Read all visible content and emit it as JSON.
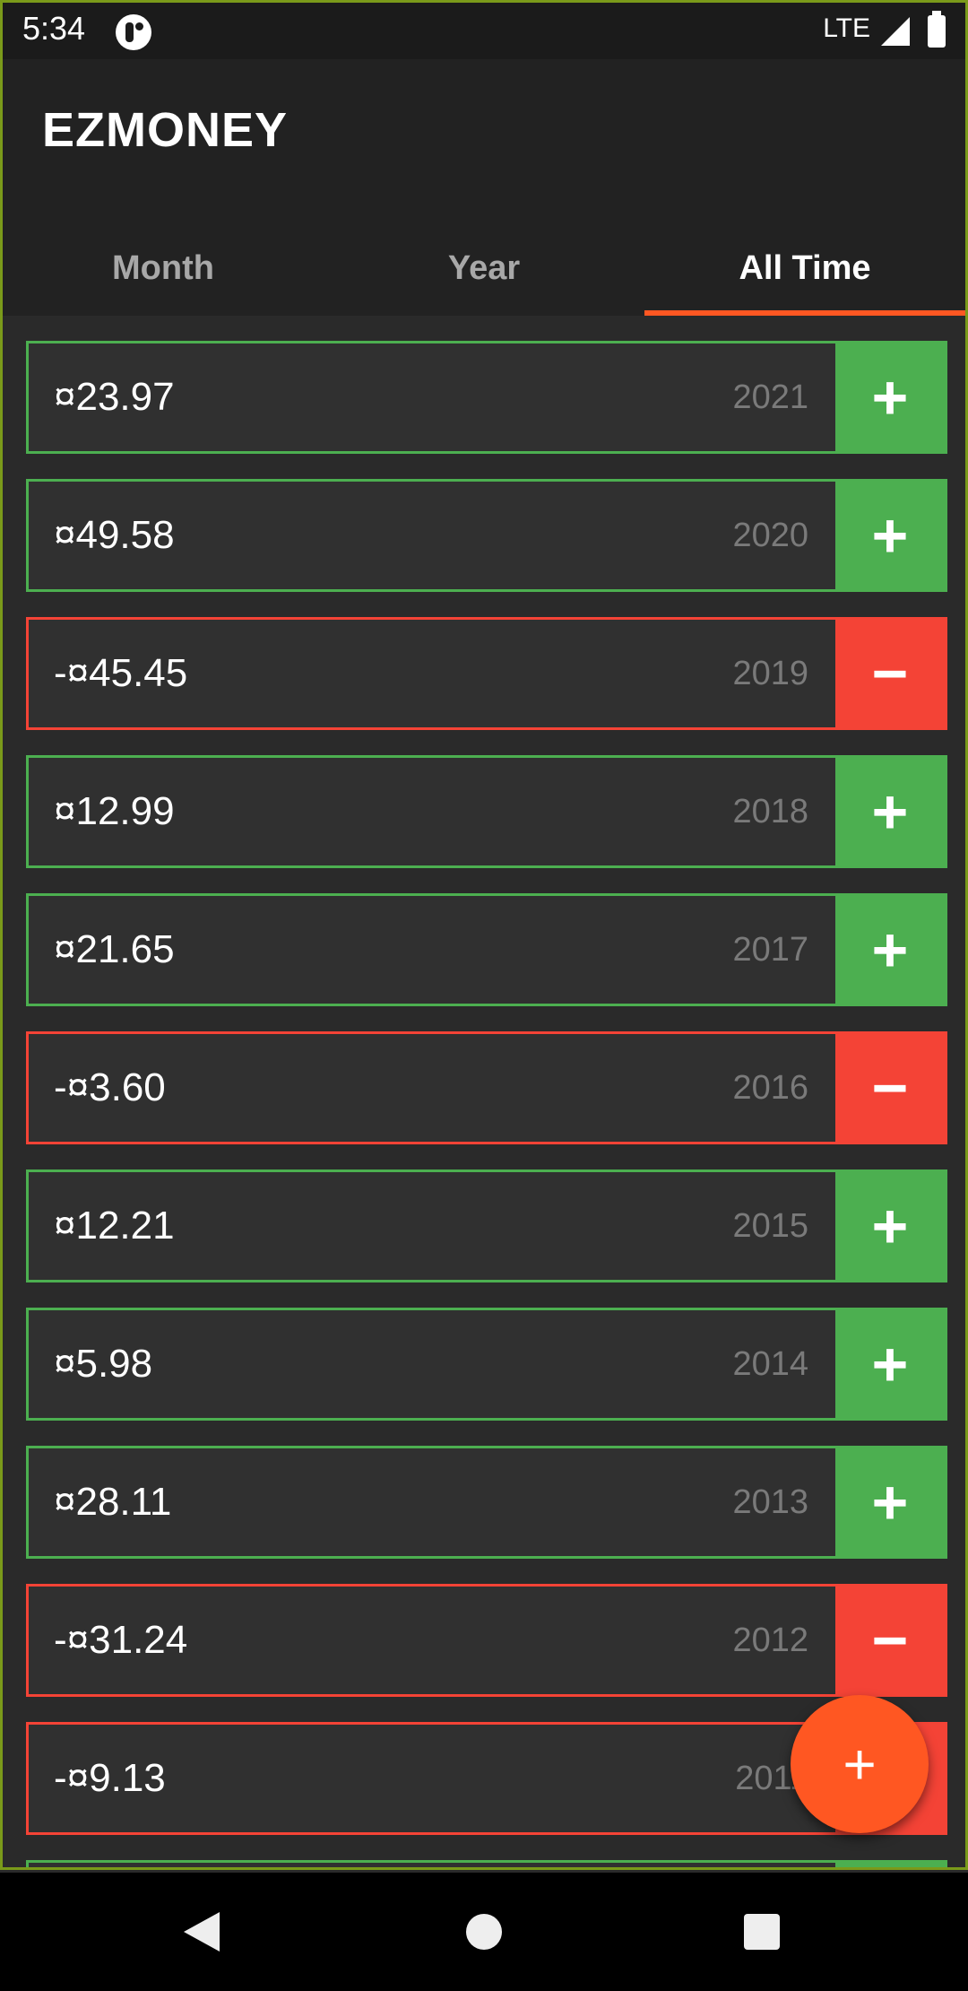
{
  "status_bar": {
    "time": "5:34",
    "network": "LTE"
  },
  "app_bar": {
    "title": "EZMONEY"
  },
  "tabs": [
    {
      "label": "Month",
      "active": false
    },
    {
      "label": "Year",
      "active": false
    },
    {
      "label": "All Time",
      "active": true
    }
  ],
  "rows": [
    {
      "amount": "¤23.97",
      "year": "2021",
      "button": "+",
      "type": "positive"
    },
    {
      "amount": "¤49.58",
      "year": "2020",
      "button": "+",
      "type": "positive"
    },
    {
      "amount": "-¤45.45",
      "year": "2019",
      "button": "−",
      "type": "negative"
    },
    {
      "amount": "¤12.99",
      "year": "2018",
      "button": "+",
      "type": "positive"
    },
    {
      "amount": "¤21.65",
      "year": "2017",
      "button": "+",
      "type": "positive"
    },
    {
      "amount": "-¤3.60",
      "year": "2016",
      "button": "−",
      "type": "negative"
    },
    {
      "amount": "¤12.21",
      "year": "2015",
      "button": "+",
      "type": "positive"
    },
    {
      "amount": "¤5.98",
      "year": "2014",
      "button": "+",
      "type": "positive"
    },
    {
      "amount": "¤28.11",
      "year": "2013",
      "button": "+",
      "type": "positive"
    },
    {
      "amount": "-¤31.24",
      "year": "2012",
      "button": "−",
      "type": "negative"
    },
    {
      "amount": "-¤9.13",
      "year": "2011",
      "button": "−",
      "type": "negative"
    },
    {
      "amount": "",
      "year": "",
      "button": "+",
      "type": "positive"
    }
  ],
  "fab": {
    "label": "+"
  },
  "colors": {
    "accent": "#ff5722",
    "positive": "#4caf50",
    "negative": "#f44336",
    "surface": "#303030",
    "background": "#2a2a2a",
    "app_bar": "#222222"
  },
  "nav_bar": {
    "back_icon": "back-triangle-icon",
    "home_icon": "home-circle-icon",
    "recents_icon": "recents-square-icon"
  }
}
